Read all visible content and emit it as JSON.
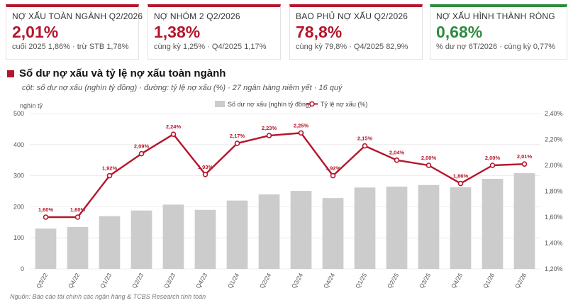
{
  "kpis": [
    {
      "label": "NỢ XẤU TOÀN NGÀNH Q2/2026",
      "value": "2,01%",
      "sub": "cuối 2025 1,86% · trừ STB 1,78%",
      "tone": "red"
    },
    {
      "label": "NỢ NHÓM 2 Q2/2026",
      "value": "1,38%",
      "sub": "cùng kỳ 1,25% · Q4/2025 1,17%",
      "tone": "red"
    },
    {
      "label": "BAO PHỦ NỢ XẤU Q2/2026",
      "value": "78,8%",
      "sub": "cùng kỳ 79,8% · Q4/2025 82,9%",
      "tone": "red"
    },
    {
      "label": "NỢ XẤU HÌNH THÀNH RÒNG",
      "value": "0,68%",
      "sub": "% dư nợ 6T/2026 · cùng kỳ 0,77%",
      "tone": "green"
    }
  ],
  "header": {
    "title": "Số dư nợ xấu và tỷ lệ nợ xấu toàn ngành",
    "subtitle": "cột: số dư nợ xấu (nghìn tỷ đồng) · đường: tỷ lệ nợ xấu (%) · 27 ngân hàng niêm yết · 16 quý"
  },
  "colors": {
    "accent": "#b5162b",
    "green": "#2e8b3f",
    "bar": "#cccccc",
    "grid": "#ececec"
  },
  "chart_data": {
    "type": "bar",
    "categories": [
      "Q3/22",
      "Q4/22",
      "Q1/23",
      "Q2/23",
      "Q3/23",
      "Q4/23",
      "Q1/24",
      "Q2/24",
      "Q3/24",
      "Q4/24",
      "Q1/25",
      "Q2/25",
      "Q3/25",
      "Q4/25",
      "Q1/26",
      "Q2/26"
    ],
    "series": [
      {
        "name": "Số dư nợ xấu (nghìn tỷ đồng)",
        "type": "bar",
        "axis": "left",
        "values": [
          130,
          135,
          170,
          188,
          207,
          190,
          220,
          240,
          251,
          228,
          262,
          265,
          270,
          263,
          290,
          308
        ]
      },
      {
        "name": "Tỷ lệ nợ xấu (%)",
        "type": "line",
        "axis": "right",
        "values": [
          1.6,
          1.6,
          1.92,
          2.09,
          2.24,
          1.93,
          2.17,
          2.23,
          2.25,
          1.92,
          2.15,
          2.04,
          2.0,
          1.86,
          2.0,
          2.01
        ],
        "labels": [
          "1,60%",
          "1,60%",
          "1,92%",
          "2,09%",
          "2,24%",
          "1,93%",
          "2,17%",
          "2,23%",
          "2,25%",
          "1,92%",
          "2,15%",
          "2,04%",
          "2,00%",
          "1,86%",
          "2,00%",
          "2,01%"
        ]
      }
    ],
    "ylabel": "nghìn tỷ",
    "ylim": [
      0,
      500
    ],
    "yticks": [
      0,
      100,
      200,
      300,
      400,
      500
    ],
    "ytick_labels": [
      "0",
      "100",
      "200",
      "300",
      "400",
      "500"
    ],
    "y2lim": [
      1.2,
      2.4
    ],
    "y2ticks": [
      1.2,
      1.4,
      1.6,
      1.8,
      2.0,
      2.2,
      2.4
    ],
    "y2tick_labels": [
      "1,20%",
      "1,40%",
      "1,60%",
      "1,80%",
      "2,00%",
      "2,20%",
      "2,40%"
    ],
    "legend": "top-center",
    "grid": true
  },
  "source": "Nguồn: Báo cáo tài chính các ngân hàng & TCBS Research tính toán"
}
